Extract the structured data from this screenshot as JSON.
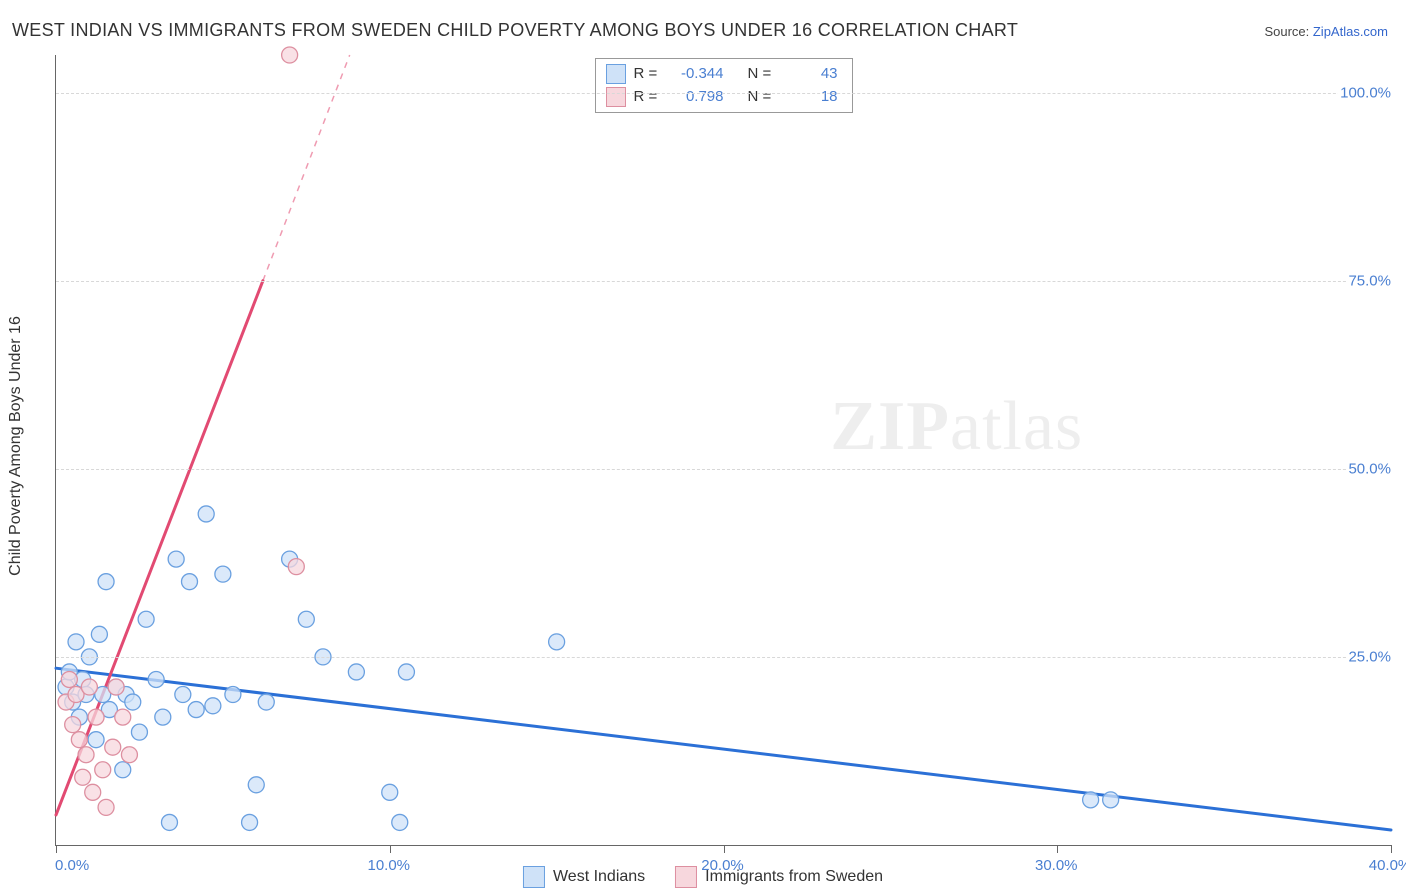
{
  "title": "WEST INDIAN VS IMMIGRANTS FROM SWEDEN CHILD POVERTY AMONG BOYS UNDER 16 CORRELATION CHART",
  "source_prefix": "Source: ",
  "source_link": "ZipAtlas.com",
  "y_axis_label": "Child Poverty Among Boys Under 16",
  "watermark_bold": "ZIP",
  "watermark_light": "atlas",
  "chart": {
    "type": "scatter-with-regression",
    "xlim": [
      0,
      40
    ],
    "ylim": [
      0,
      105
    ],
    "x_ticks": [
      0,
      10,
      20,
      30,
      40
    ],
    "x_tick_labels": [
      "0.0%",
      "10.0%",
      "20.0%",
      "30.0%",
      "40.0%"
    ],
    "y_ticks": [
      25,
      50,
      75,
      100
    ],
    "y_tick_labels": [
      "25.0%",
      "50.0%",
      "75.0%",
      "100.0%"
    ],
    "background_color": "#ffffff",
    "grid_color": "#d8d8d8",
    "axis_color": "#666666",
    "marker_radius": 8,
    "marker_stroke_width": 1.3,
    "line_width": 3,
    "dash_pattern": "6,6",
    "series": [
      {
        "name": "West Indians",
        "marker_fill": "#cfe2f8",
        "marker_stroke": "#6aa0e0",
        "line_color": "#2b70d6",
        "swatch_fill": "#cfe2f8",
        "swatch_border": "#6aa0e0",
        "R": "-0.344",
        "N": "43",
        "regression": {
          "x1": 0,
          "y1": 23.5,
          "x2": 40,
          "y2": 2
        },
        "points": [
          [
            0.3,
            21
          ],
          [
            0.4,
            23
          ],
          [
            0.5,
            19
          ],
          [
            0.6,
            27
          ],
          [
            0.7,
            17
          ],
          [
            0.8,
            22
          ],
          [
            0.9,
            20
          ],
          [
            1.0,
            25
          ],
          [
            1.2,
            14
          ],
          [
            1.3,
            28
          ],
          [
            1.4,
            20
          ],
          [
            1.6,
            18
          ],
          [
            1.8,
            21
          ],
          [
            2.0,
            10
          ],
          [
            2.1,
            20
          ],
          [
            1.5,
            35
          ],
          [
            2.3,
            19
          ],
          [
            2.5,
            15
          ],
          [
            2.7,
            30
          ],
          [
            3.0,
            22
          ],
          [
            3.2,
            17
          ],
          [
            3.4,
            3
          ],
          [
            3.6,
            38
          ],
          [
            3.8,
            20
          ],
          [
            4.0,
            35
          ],
          [
            4.5,
            44
          ],
          [
            4.7,
            18.5
          ],
          [
            5.0,
            36
          ],
          [
            5.3,
            20
          ],
          [
            5.8,
            3
          ],
          [
            6.0,
            8
          ],
          [
            6.3,
            19
          ],
          [
            7.0,
            38
          ],
          [
            7.5,
            30
          ],
          [
            8.0,
            25
          ],
          [
            9.0,
            23
          ],
          [
            10.0,
            7
          ],
          [
            10.3,
            3
          ],
          [
            10.5,
            23
          ],
          [
            15.0,
            27
          ],
          [
            31.0,
            6
          ],
          [
            31.6,
            6
          ],
          [
            4.2,
            18
          ]
        ]
      },
      {
        "name": "Immigrants from Sweden",
        "marker_fill": "#f7d7dd",
        "marker_stroke": "#dd8fa0",
        "line_color": "#e24a72",
        "swatch_fill": "#f7d7dd",
        "swatch_border": "#dd8fa0",
        "R": "0.798",
        "N": "18",
        "regression": {
          "x1": 0,
          "y1": 4,
          "x2": 6.2,
          "y2": 75
        },
        "regression_dash_ext": {
          "x1": 6.2,
          "y1": 75,
          "x2": 8.8,
          "y2": 105
        },
        "points": [
          [
            0.3,
            19
          ],
          [
            0.4,
            22
          ],
          [
            0.5,
            16
          ],
          [
            0.6,
            20
          ],
          [
            0.7,
            14
          ],
          [
            0.8,
            9
          ],
          [
            0.9,
            12
          ],
          [
            1.0,
            21
          ],
          [
            1.1,
            7
          ],
          [
            1.2,
            17
          ],
          [
            1.4,
            10
          ],
          [
            1.5,
            5
          ],
          [
            1.7,
            13
          ],
          [
            1.8,
            21
          ],
          [
            2.0,
            17
          ],
          [
            2.2,
            12
          ],
          [
            7.2,
            37
          ],
          [
            7.0,
            105
          ]
        ]
      }
    ]
  },
  "stat_box": {
    "r_label": "R =",
    "n_label": "N ="
  },
  "bottom_legend": {
    "items": [
      "West Indians",
      "Immigrants from Sweden"
    ]
  }
}
